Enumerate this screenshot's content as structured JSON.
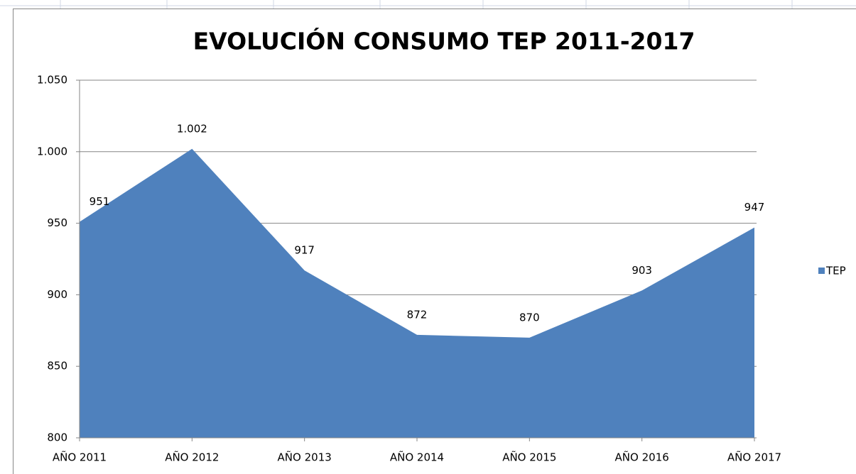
{
  "chart_data": {
    "type": "area",
    "title": "EVOLUCIÓN CONSUMO TEP 2011-2017",
    "categories": [
      "AÑO 2011",
      "AÑO 2012",
      "AÑO 2013",
      "AÑO 2014",
      "AÑO 2015",
      "AÑO 2016",
      "AÑO 2017"
    ],
    "series": [
      {
        "name": "TEP",
        "color": "#4f81bd",
        "values": [
          951,
          1002,
          917,
          872,
          870,
          903,
          947
        ],
        "value_labels": [
          "951",
          "1.002",
          "917",
          "872",
          "870",
          "903",
          "947"
        ]
      }
    ],
    "ylim": [
      800,
      1050
    ],
    "yticks": [
      800,
      850,
      900,
      950,
      {
        "value": 1000,
        "label": "1.000"
      },
      {
        "value": 1050,
        "label": "1.050"
      }
    ],
    "grid": true,
    "legend": "right"
  }
}
